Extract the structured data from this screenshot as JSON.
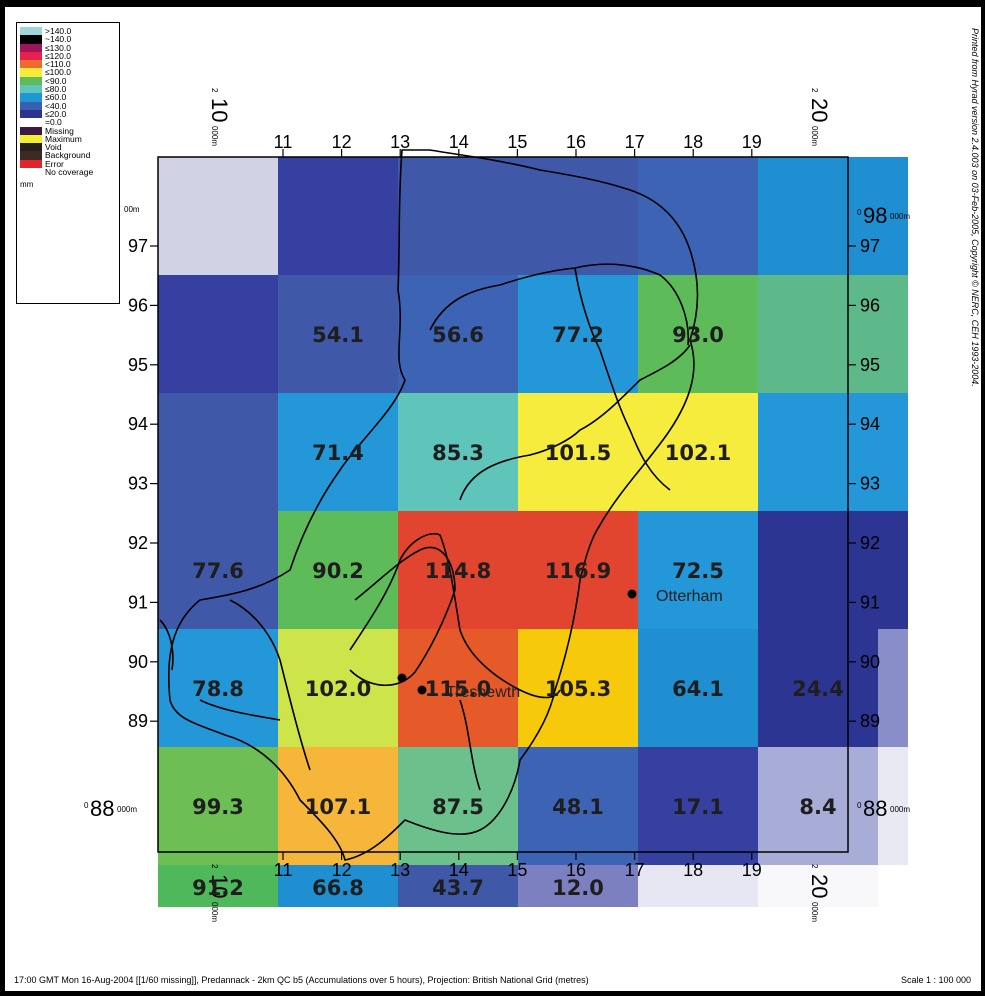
{
  "legend": {
    "items": [
      {
        "label": ">140.0",
        "color": "#9fd5d8"
      },
      {
        "label": "~140.0",
        "color": "#000000"
      },
      {
        "label": "≤130.0",
        "color": "#a0145a"
      },
      {
        "label": "≤120.0",
        "color": "#e8204f"
      },
      {
        "label": "<110.0",
        "color": "#ec6a2a"
      },
      {
        "label": "≤100.0",
        "color": "#f7ea3a"
      },
      {
        "label": "<90.0",
        "color": "#5dbb5a"
      },
      {
        "label": "≤80.0",
        "color": "#5fc4ba"
      },
      {
        "label": "≤60.0",
        "color": "#1f97d4"
      },
      {
        "label": "<40.0",
        "color": "#3b5fb0"
      },
      {
        "label": "≤20.0",
        "color": "#2b3391"
      },
      {
        "label": "=0.0",
        "color": "#ffffff"
      },
      {
        "label": "Missing",
        "color": "#3a1a45"
      },
      {
        "label": "Maximum",
        "color": "#f2ee2c"
      },
      {
        "label": "Void",
        "color": "#232020"
      },
      {
        "label": "Background",
        "color": "#3d2a21"
      },
      {
        "label": "Error",
        "color": "#e0242a"
      },
      {
        "label": "No coverage",
        "color": "#ffffff"
      }
    ],
    "unit": "mm"
  },
  "axes": {
    "top_ticks": [
      "11",
      "12",
      "13",
      "14",
      "15",
      "16",
      "17",
      "18",
      "19"
    ],
    "bottom_ticks": [
      "11",
      "12",
      "13",
      "14",
      "15",
      "16",
      "17",
      "18",
      "19"
    ],
    "left_ticks": [
      "97",
      "96",
      "95",
      "94",
      "93",
      "92",
      "91",
      "90",
      "89"
    ],
    "right_ticks": [
      "97",
      "96",
      "95",
      "94",
      "93",
      "92",
      "91",
      "90",
      "89"
    ],
    "corner_x_left": {
      "big": "10",
      "sup": "2",
      "sub": "000m"
    },
    "corner_x_right": {
      "big": "20",
      "sup": "2",
      "sub": "000m"
    },
    "corner_y_top": {
      "big": "98",
      "sup": "0",
      "sub": "000m"
    },
    "corner_y_bottom": {
      "big": "88",
      "sup": "0",
      "sub": "000m"
    },
    "left_top_partial": "00m"
  },
  "grid": {
    "cols": 6,
    "rows": 6,
    "cells": [
      [
        {
          "color": "#d0d3e4",
          "label": ""
        },
        {
          "color": "#3640a0",
          "label": ""
        },
        {
          "color": "#3f58a8",
          "label": ""
        },
        {
          "color": "#3f58a8",
          "label": ""
        },
        {
          "color": "#3d64b4",
          "label": ""
        },
        {
          "color": "#1f8fd2",
          "label": ""
        }
      ],
      [
        {
          "color": "#3640a0",
          "label": ""
        },
        {
          "color": "#3f58a8",
          "label": "54.1"
        },
        {
          "color": "#3d64b4",
          "label": "56.6"
        },
        {
          "color": "#2497d8",
          "label": "77.2"
        },
        {
          "color": "#5dbb5a",
          "label": "93.0"
        },
        {
          "color": "#5db88a",
          "label": ""
        }
      ],
      [
        {
          "color": "#3f58a8",
          "label": ""
        },
        {
          "color": "#2497d8",
          "label": "71.4"
        },
        {
          "color": "#5fc4ba",
          "label": "85.3"
        },
        {
          "color": "#f5ec3e",
          "label": "101.5"
        },
        {
          "color": "#f5ec3e",
          "label": "102.1"
        },
        {
          "color": "#2497d8",
          "label": ""
        }
      ],
      [
        {
          "color": "#3f58a8",
          "label": "77.6"
        },
        {
          "color": "#5dbb5a",
          "label": "90.2"
        },
        {
          "color": "#e2452f",
          "label": "114.8"
        },
        {
          "color": "#e2452f",
          "label": "116.9"
        },
        {
          "color": "#2497d8",
          "label": "72.5"
        },
        {
          "color": "#2c3692",
          "label": ""
        }
      ],
      [
        {
          "color": "#2497d8",
          "label": "78.8"
        },
        {
          "color": "#cde54a",
          "label": "102.0"
        },
        {
          "color": "#e65a2a",
          "label": "115.0"
        },
        {
          "color": "#f6c90a",
          "label": "105.3"
        },
        {
          "color": "#1f8fd2",
          "label": "64.1"
        },
        {
          "color": "#2c3692",
          "label": "24.4"
        }
      ],
      [
        {
          "color": "#6dbe55",
          "label": "99.3"
        },
        {
          "color": "#f6b63a",
          "label": "107.1"
        },
        {
          "color": "#6cc08c",
          "label": "87.5"
        },
        {
          "color": "#3d64b4",
          "label": "48.1"
        },
        {
          "color": "#3640a0",
          "label": "17.1"
        },
        {
          "color": "#a8add8",
          "label": "8.4"
        }
      ]
    ],
    "right_strip": [
      "#1f8fd2",
      "#5db88a",
      "#2497d8",
      "#2c3692",
      "#8a8ec8",
      "#e8e9f2"
    ],
    "bottom_strip": [
      {
        "color": "#4fb85a",
        "label": "91.2"
      },
      {
        "color": "#1f8fd2",
        "label": "66.8"
      },
      {
        "color": "#3f58a8",
        "label": "43.7"
      },
      {
        "color": "#7c80c0",
        "label": "12.0"
      },
      {
        "color": "#e6e7f3",
        "label": ""
      },
      {
        "color": "#f8f8fb",
        "label": ""
      }
    ]
  },
  "places": [
    {
      "name": "Otterham"
    },
    {
      "name": "Tresnewth"
    }
  ],
  "footer": {
    "left": "17:00 GMT Mon 16-Aug-2004 [[1/60 missing]], Predannack - 2km QC b5 (Accumulations over 5 hours), Projection: British National Grid (metres)",
    "right": "Scale 1 : 100 000"
  },
  "side_note": "Printed from Hyrad version 2.4.003 on 03-Feb-2005, Copyright © NERC, CEH 1993-2004."
}
